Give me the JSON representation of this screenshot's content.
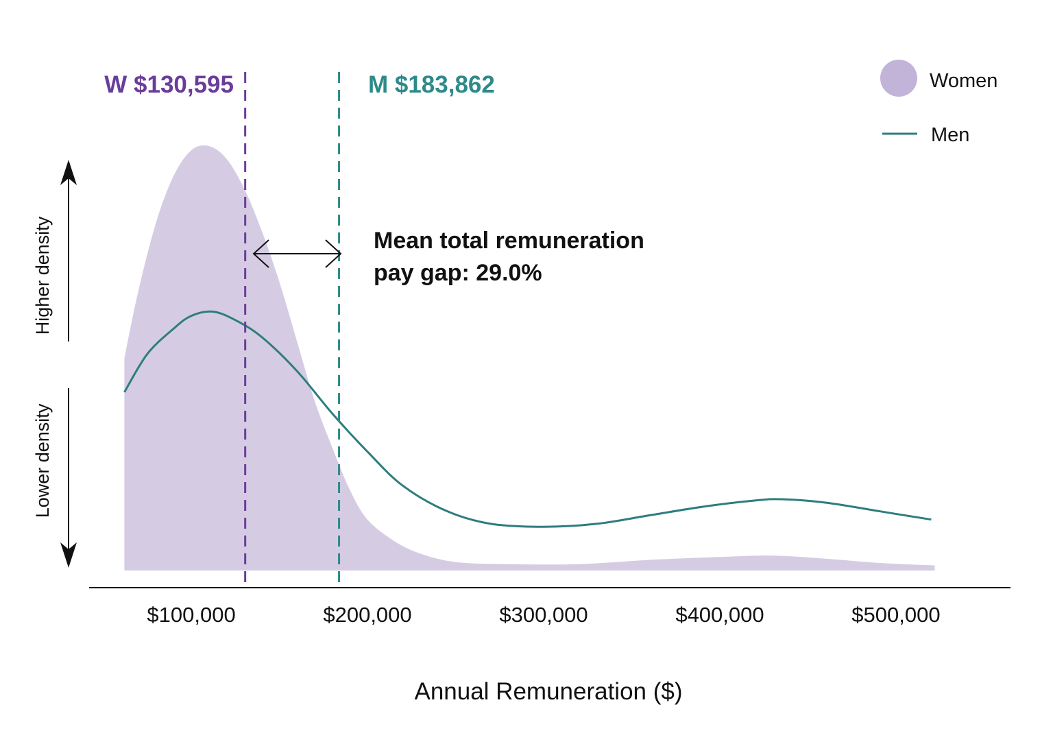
{
  "chart_data": {
    "type": "area",
    "xlabel": "Annual Remuneration ($)",
    "xlim": [
      42000,
      565000
    ],
    "ylim": [
      0,
      1.0
    ],
    "x_ticks": [
      {
        "value": 100000,
        "label": "$100,000"
      },
      {
        "value": 200000,
        "label": "$200,000"
      },
      {
        "value": 300000,
        "label": "$300,000"
      },
      {
        "value": 400000,
        "label": "$400,000"
      },
      {
        "value": 500000,
        "label": "$500,000"
      }
    ],
    "y_indicators": {
      "higher": "Higher density",
      "lower": "Lower density"
    },
    "legend": {
      "position": "top-right",
      "items": [
        {
          "label": "Women",
          "marker": "circle"
        },
        {
          "label": "Men",
          "marker": "line"
        }
      ]
    },
    "series": [
      {
        "name": "Women",
        "render": "area",
        "color": "#d5cce4",
        "points": [
          [
            62000,
            0.5
          ],
          [
            70000,
            0.66
          ],
          [
            80000,
            0.82
          ],
          [
            90000,
            0.93
          ],
          [
            100000,
            0.99
          ],
          [
            110000,
            1.0
          ],
          [
            120000,
            0.97
          ],
          [
            130000,
            0.9
          ],
          [
            140000,
            0.8
          ],
          [
            150000,
            0.68
          ],
          [
            160000,
            0.54
          ],
          [
            170000,
            0.4
          ],
          [
            180000,
            0.29
          ],
          [
            190000,
            0.19
          ],
          [
            200000,
            0.12
          ],
          [
            215000,
            0.07
          ],
          [
            230000,
            0.04
          ],
          [
            250000,
            0.02
          ],
          [
            280000,
            0.015
          ],
          [
            320000,
            0.015
          ],
          [
            360000,
            0.025
          ],
          [
            400000,
            0.032
          ],
          [
            430000,
            0.035
          ],
          [
            460000,
            0.028
          ],
          [
            490000,
            0.018
          ],
          [
            522000,
            0.012
          ]
        ]
      },
      {
        "name": "Men",
        "render": "line",
        "color": "#2e7d7e",
        "points": [
          [
            62000,
            0.42
          ],
          [
            75000,
            0.51
          ],
          [
            90000,
            0.57
          ],
          [
            100000,
            0.6
          ],
          [
            112000,
            0.61
          ],
          [
            125000,
            0.59
          ],
          [
            140000,
            0.55
          ],
          [
            160000,
            0.47
          ],
          [
            180000,
            0.37
          ],
          [
            200000,
            0.28
          ],
          [
            220000,
            0.2
          ],
          [
            245000,
            0.14
          ],
          [
            270000,
            0.11
          ],
          [
            300000,
            0.103
          ],
          [
            330000,
            0.11
          ],
          [
            360000,
            0.13
          ],
          [
            390000,
            0.15
          ],
          [
            420000,
            0.165
          ],
          [
            435000,
            0.168
          ],
          [
            460000,
            0.16
          ],
          [
            490000,
            0.14
          ],
          [
            520000,
            0.12
          ]
        ]
      }
    ],
    "reference_lines": [
      {
        "name": "Women mean",
        "value": 130595,
        "label": "W $130,595",
        "color": "#6a3d9a"
      },
      {
        "name": "Men mean",
        "value": 183862,
        "label": "M $183,862",
        "color": "#2e8a8a"
      }
    ],
    "annotation": {
      "line1": "Mean total remuneration",
      "line2": "pay gap: 29.0%"
    }
  }
}
